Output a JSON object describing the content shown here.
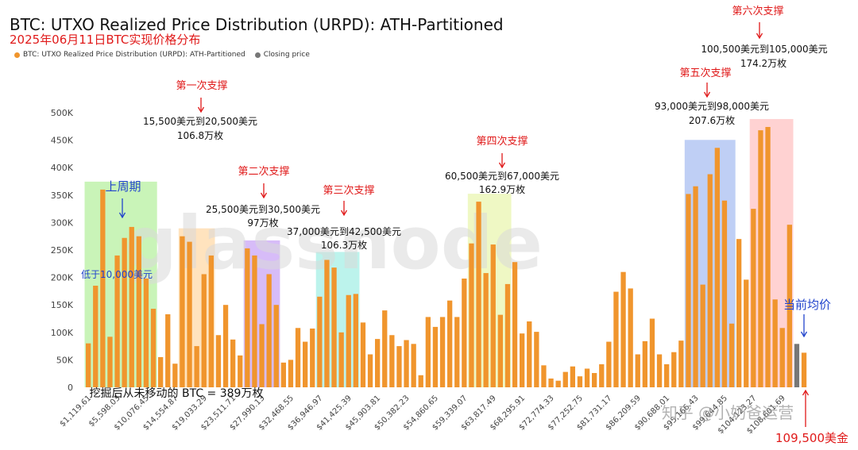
{
  "header": {
    "title": "BTC: UTXO Realized Price Distribution (URPD): ATH-Partitioned",
    "subtitle": "2025年06月11日BTC实现价格分布"
  },
  "legend": {
    "items": [
      {
        "label": "BTC: UTXO Realized Price Distribution (URPD): ATH-Partitioned",
        "color": "#f0952d"
      },
      {
        "label": "Closing price",
        "color": "#777777"
      }
    ]
  },
  "watermark": {
    "logo": "glassnode",
    "credit": "知乎 @小奶爸运营"
  },
  "chart_data": {
    "type": "bar",
    "ylim": [
      0,
      500000
    ],
    "yticks": [
      "0",
      "50K",
      "100K",
      "150K",
      "200K",
      "250K",
      "300K",
      "350K",
      "400K",
      "450K",
      "500K"
    ],
    "xtick_labels": [
      "$1,119.61",
      "$5,598.03",
      "$10,076.45",
      "$14,554.87",
      "$19,033.29",
      "$23,511.71",
      "$27,990.13",
      "$32,468.55",
      "$36,946.97",
      "$41,425.39",
      "$45,903.81",
      "$50,382.23",
      "$54,860.65",
      "$59,339.07",
      "$63,817.49",
      "$68,295.91",
      "$72,774.33",
      "$77,252.75",
      "$81,731.17",
      "$86,209.59",
      "$90,688.01",
      "$95,166.43",
      "$99,644.85",
      "$104,123.27",
      "$108,601.69"
    ],
    "values": [
      80000,
      185000,
      360000,
      92000,
      240000,
      272000,
      292000,
      275000,
      198000,
      143000,
      55000,
      133000,
      43000,
      275000,
      265000,
      75000,
      206000,
      240000,
      95000,
      150000,
      87000,
      58000,
      253000,
      240000,
      115000,
      206000,
      150000,
      45000,
      50000,
      108000,
      83000,
      107000,
      165000,
      232000,
      218000,
      100000,
      168000,
      170000,
      118000,
      60000,
      88000,
      140000,
      95000,
      75000,
      86000,
      79000,
      22000,
      128000,
      110000,
      128000,
      158000,
      128000,
      198000,
      262000,
      338000,
      208000,
      260000,
      132000,
      188000,
      228000,
      98000,
      120000,
      101000,
      40000,
      16000,
      12000,
      28000,
      38000,
      20000,
      34000,
      26000,
      42000,
      83000,
      174000,
      210000,
      180000,
      60000,
      84000,
      125000,
      60000,
      42000,
      64000,
      85000,
      352000,
      366000,
      187000,
      388000,
      436000,
      340000,
      116000,
      270000,
      196000,
      325000,
      468000,
      474000,
      160000,
      108000,
      296000,
      79000,
      63000
    ],
    "closing_index": 98,
    "bar_color": "#f0952d",
    "closing_color": "#777777",
    "annotations": [
      {
        "text": "上周期",
        "color": "#2244cc"
      },
      {
        "text": "低于10,000美元",
        "color": "#2244cc"
      },
      {
        "text": "第一次支撑",
        "color": "#e01a1a"
      },
      {
        "text": "15,500美元到20,500美元",
        "color": "#111111"
      },
      {
        "text": "106.8万枚",
        "color": "#111111"
      },
      {
        "text": "第二次支撑",
        "color": "#e01a1a"
      },
      {
        "text": "25,500美元到30,500美元",
        "color": "#111111"
      },
      {
        "text": "97万枚",
        "color": "#111111"
      },
      {
        "text": "第三次支撑",
        "color": "#e01a1a"
      },
      {
        "text": "37,000美元到42,500美元",
        "color": "#111111"
      },
      {
        "text": "106.3万枚",
        "color": "#111111"
      },
      {
        "text": "第四次支撑",
        "color": "#e01a1a"
      },
      {
        "text": "60,500美元到67,000美元",
        "color": "#111111"
      },
      {
        "text": "162.9万枚",
        "color": "#111111"
      },
      {
        "text": "第五次支撑",
        "color": "#e01a1a"
      },
      {
        "text": "93,000美元到98,000美元",
        "color": "#111111"
      },
      {
        "text": "207.6万枚",
        "color": "#111111"
      },
      {
        "text": "第六次支撑",
        "color": "#e01a1a"
      },
      {
        "text": "100,500美元到105,000美元",
        "color": "#111111"
      },
      {
        "text": "174.2万枚",
        "color": "#111111"
      },
      {
        "text": "当前均价",
        "color": "#2244cc"
      },
      {
        "text": "109,500美金",
        "color": "#e01a1a"
      },
      {
        "text": "挖掘后从未移动的 BTC = 389万枚",
        "color": "#111111"
      }
    ],
    "zones": [
      {
        "from": 0,
        "to": 9,
        "color": "#b7f0a0"
      },
      {
        "from": 13,
        "to": 17,
        "color": "#ffd9a8"
      },
      {
        "from": 22,
        "to": 26,
        "color": "#c9a6f5"
      },
      {
        "from": 32,
        "to": 37,
        "color": "#a6efe6"
      },
      {
        "from": 53,
        "to": 58,
        "color": "#e9f5b0"
      },
      {
        "from": 83,
        "to": 89,
        "color": "#a9bff2"
      },
      {
        "from": 92,
        "to": 97,
        "color": "#ffc3c3"
      }
    ]
  }
}
